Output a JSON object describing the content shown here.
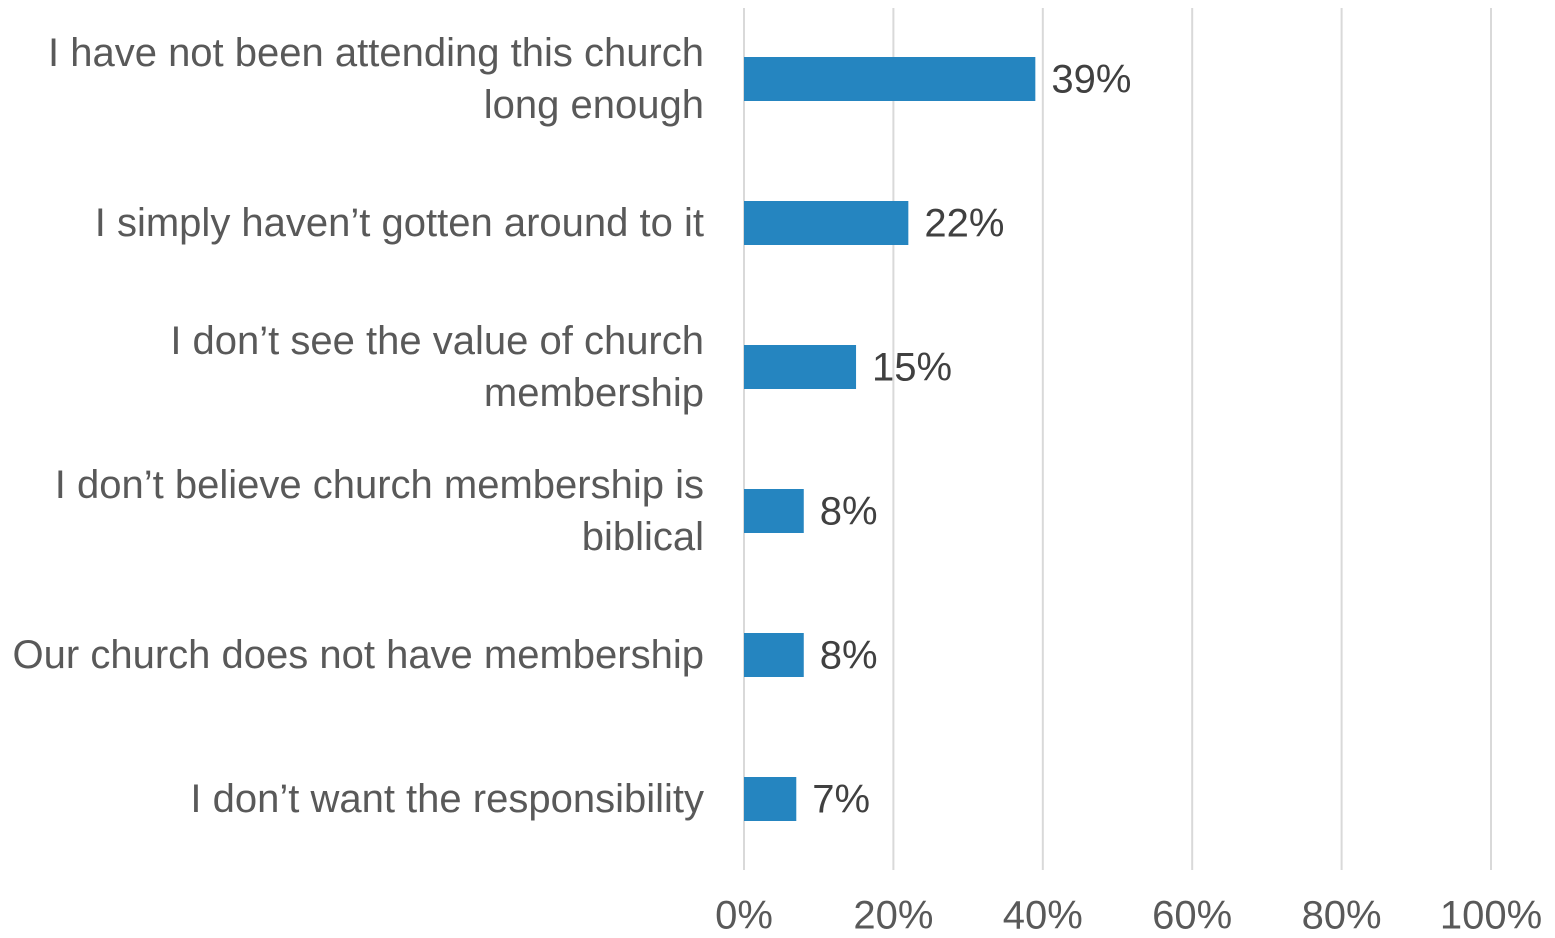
{
  "chart_data": {
    "type": "barh",
    "categories": [
      "I have not been attending this church long enough",
      "I simply haven’t gotten around to it",
      "I don’t see the value of church membership",
      "I don’t believe church membership is biblical",
      "Our church does not have membership",
      "I don’t want the responsibility"
    ],
    "values": [
      39,
      22,
      15,
      8,
      8,
      7
    ],
    "value_labels": [
      "39%",
      "22%",
      "15%",
      "8%",
      "8%",
      "7%"
    ],
    "color": "#2585c0",
    "xlim": [
      0,
      100
    ],
    "xticks": [
      {
        "value": 0,
        "label": "0%"
      },
      {
        "value": 20,
        "label": "20%"
      },
      {
        "value": 40,
        "label": "40%"
      },
      {
        "value": 60,
        "label": "60%"
      },
      {
        "value": 80,
        "label": "80%"
      },
      {
        "value": 100,
        "label": "100%"
      }
    ],
    "grid": true
  }
}
